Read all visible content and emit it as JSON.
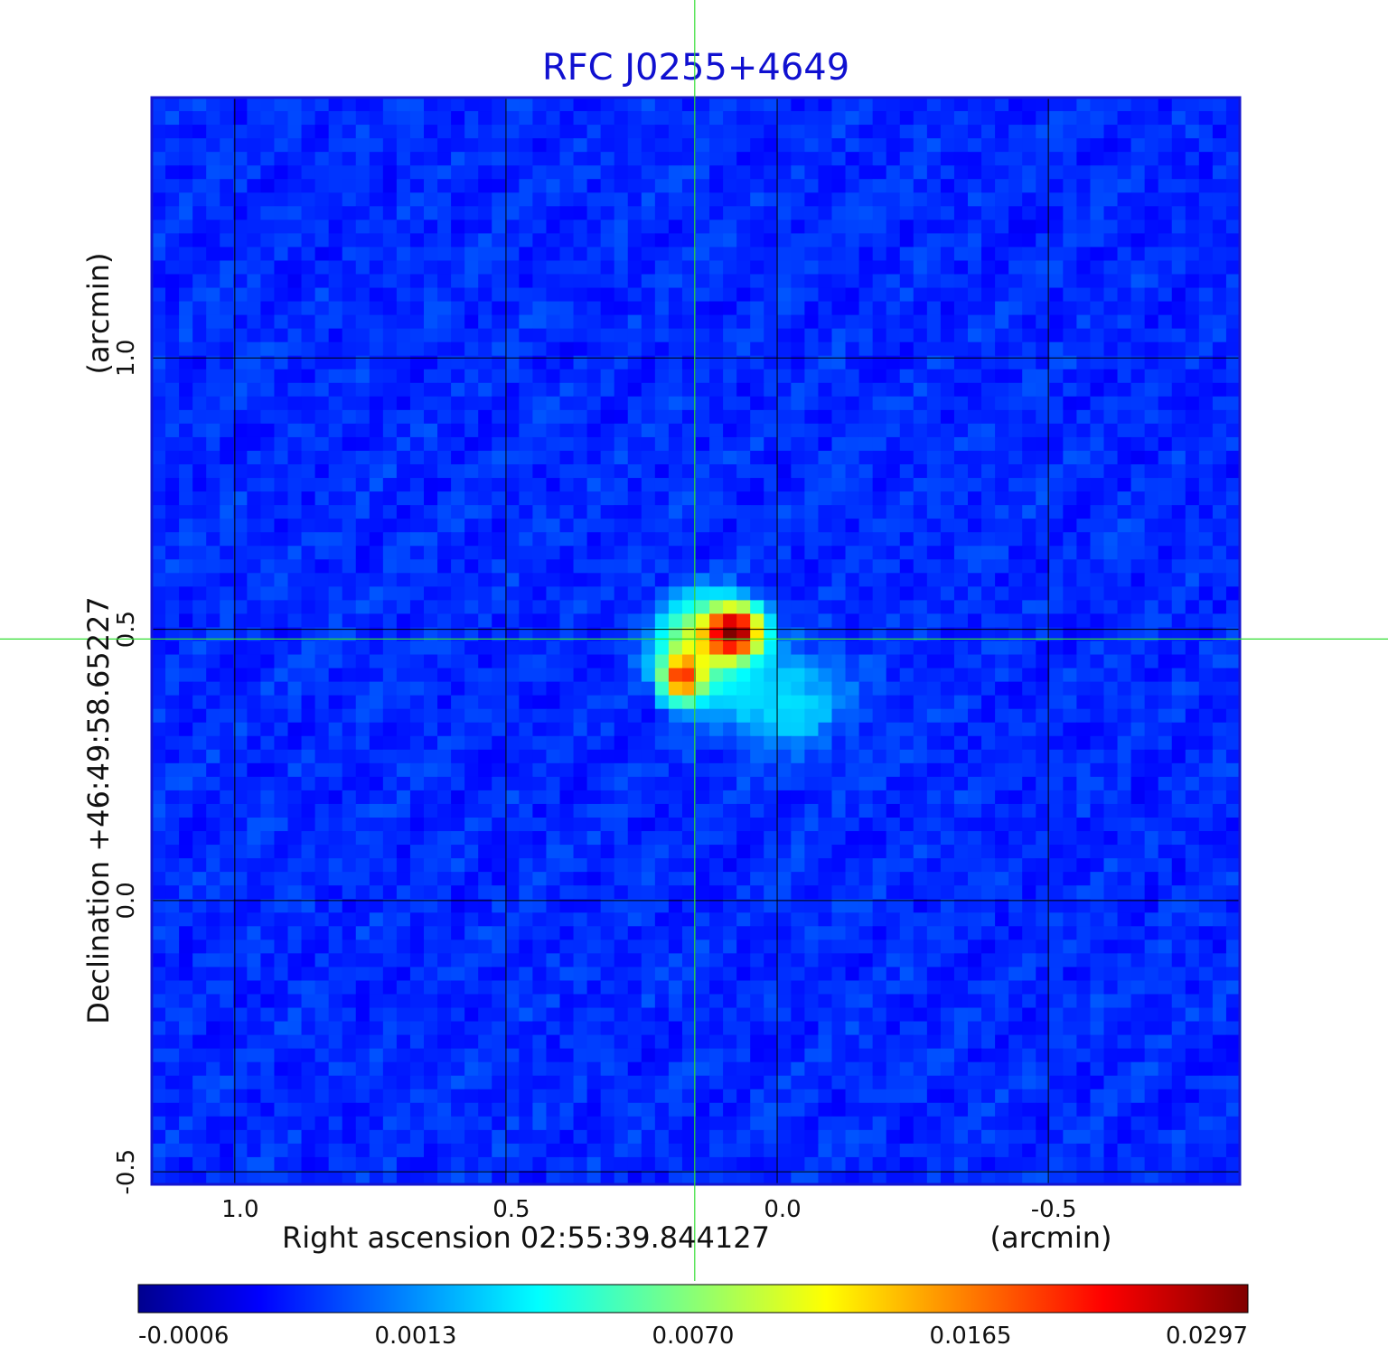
{
  "chart_data": {
    "type": "heatmap",
    "title": "RFC J0255+4649",
    "xlabel": "Right ascension  02:55:39.844127",
    "xunit": "(arcmin)",
    "ylabel": "Declination  +46:49:58.65227",
    "yunit": "(arcmin)",
    "x_ticks": [
      1.0,
      0.5,
      0.0,
      -0.5
    ],
    "x_tick_labels": [
      "1.0",
      "0.5",
      "0.0",
      "-0.5"
    ],
    "y_ticks": [
      1.0,
      0.5,
      0.0,
      -0.5
    ],
    "y_tick_labels": [
      "1.0",
      "0.5",
      "0.0",
      "-0.5"
    ],
    "xlim": [
      1.153,
      -0.853
    ],
    "ylim": [
      -0.523,
      1.48
    ],
    "grid": true,
    "crosshair": {
      "x": 0.152,
      "y": 0.482,
      "color": "#33dd33"
    },
    "colorbar": {
      "ticks": [
        -0.0006,
        0.0013,
        0.007,
        0.0165,
        0.0297
      ],
      "tick_labels": [
        "-0.0006",
        "0.0013",
        "0.0070",
        "0.0165",
        "0.0297"
      ],
      "colormap": "jet"
    },
    "sources": [
      {
        "x": 0.08,
        "y": 0.495,
        "peak": 0.0297,
        "sx": 0.03,
        "sy": 0.028
      },
      {
        "x": 0.175,
        "y": 0.41,
        "peak": 0.018,
        "sx": 0.022,
        "sy": 0.025
      },
      {
        "x": 0.145,
        "y": 0.47,
        "peak": 0.0085,
        "sx": 0.045,
        "sy": 0.05
      },
      {
        "x": 0.0,
        "y": 0.37,
        "peak": 0.0018,
        "sx": 0.08,
        "sy": 0.06
      }
    ],
    "colors": {
      "frame": "#1515d0",
      "grid": "#000000",
      "title": "#1010d0"
    }
  }
}
